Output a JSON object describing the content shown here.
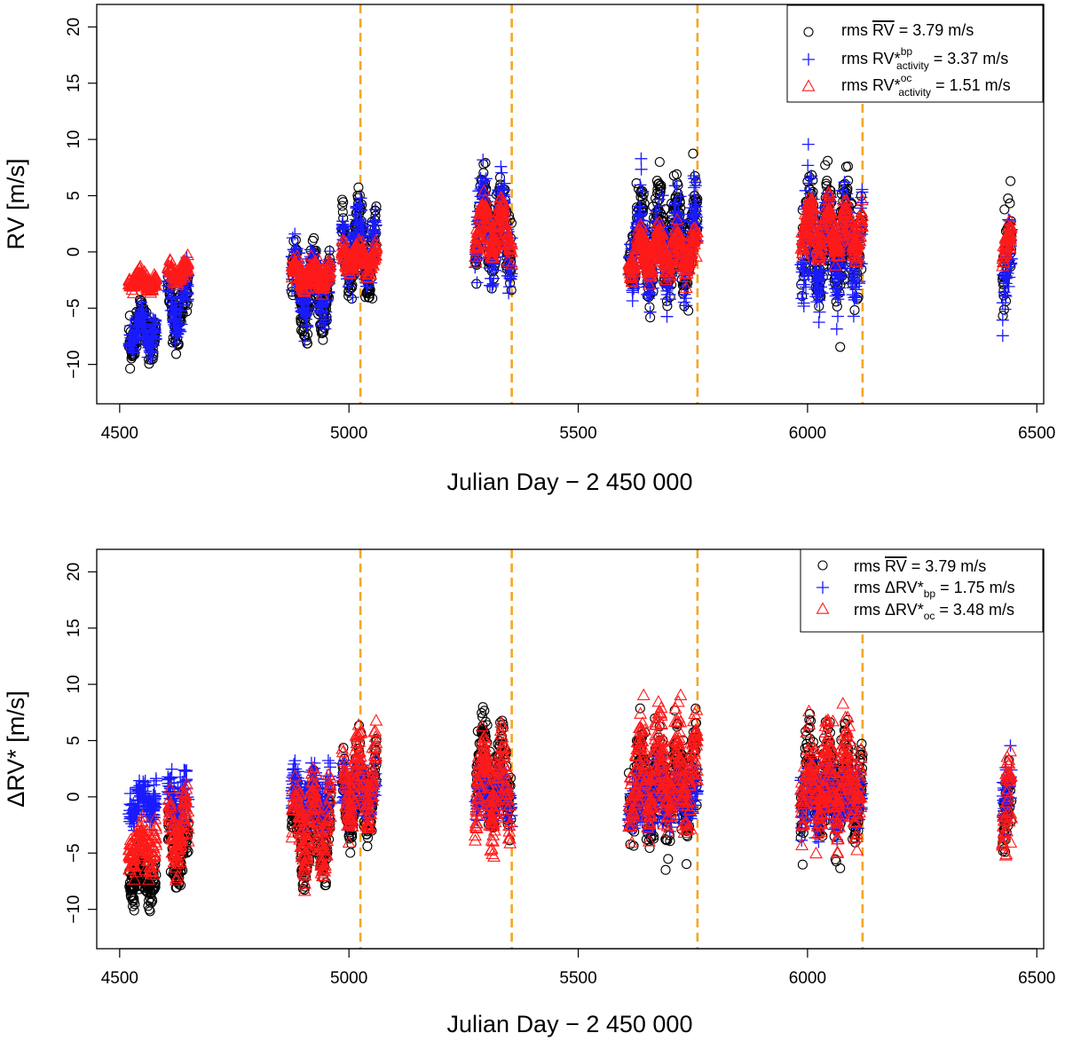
{
  "chart_data": [
    {
      "type": "scatter",
      "panel": "top",
      "xlabel": "Julian Day − 2 450 000",
      "ylabel": "RV [m/s]",
      "xlim": [
        4450,
        6515
      ],
      "ylim": [
        -13.5,
        22
      ],
      "xticks": [
        "4500",
        "5000",
        "5500",
        "6000",
        "6500"
      ],
      "yticks": [
        "−10",
        "−5",
        "0",
        "5",
        "10",
        "15",
        "20"
      ],
      "grid": false,
      "legend_position": "top-right",
      "vlines": [
        5025,
        5355,
        5760,
        6120
      ],
      "vline_color": "#f5a623",
      "legend": [
        {
          "prefix": "rms ",
          "main": "RV",
          "overline": true,
          "sup": "",
          "sub": "",
          "suffix": " = 3.79 m/s",
          "marker": "circle",
          "color": "#000000"
        },
        {
          "prefix": "rms ",
          "main": "RV*",
          "overline": false,
          "sup": "bp",
          "sub": "activity",
          "suffix": " = 3.37 m/s",
          "marker": "plus",
          "color": "#1a1aff"
        },
        {
          "prefix": "rms ",
          "main": "RV*",
          "overline": false,
          "sup": "oc",
          "sub": "activity",
          "suffix": " = 1.51 m/s",
          "marker": "triangle",
          "color": "#ff1a1a"
        }
      ],
      "series": [
        {
          "name": "rms RV = 3.79 m/s",
          "marker": "circle",
          "color": "#000000",
          "groups": [
            {
              "x": [
                4520,
                4580
              ],
              "center": -7,
              "amp": 1.5,
              "noise": 1.4
            },
            {
              "x": [
                4605,
                4650
              ],
              "center": -5,
              "amp": 2,
              "noise": 1.8
            },
            {
              "x": [
                4875,
                4960
              ],
              "center": -3.5,
              "amp": 3,
              "noise": 2
            },
            {
              "x": [
                4985,
                5060
              ],
              "center": 0,
              "amp": 3,
              "noise": 2
            },
            {
              "x": [
                5275,
                5355
              ],
              "center": 2,
              "amp": 3,
              "noise": 2.5
            },
            {
              "x": [
                5610,
                5760
              ],
              "center": 1,
              "amp": 3,
              "noise": 3
            },
            {
              "x": [
                5985,
                6120
              ],
              "center": 1,
              "amp": 3,
              "noise": 3
            },
            {
              "x": [
                6425,
                6445
              ],
              "center": -2,
              "amp": 3,
              "noise": 3
            }
          ]
        },
        {
          "name": "rms RV*bp activity = 3.37 m/s",
          "marker": "plus",
          "color": "#1a1aff",
          "groups": [
            {
              "x": [
                4520,
                4580
              ],
              "center": -7,
              "amp": 1.2,
              "noise": 1.2
            },
            {
              "x": [
                4605,
                4650
              ],
              "center": -4.5,
              "amp": 2,
              "noise": 1.6
            },
            {
              "x": [
                4875,
                4960
              ],
              "center": -3,
              "amp": 2.5,
              "noise": 1.8
            },
            {
              "x": [
                4985,
                5060
              ],
              "center": 0.5,
              "amp": 2.5,
              "noise": 1.8
            },
            {
              "x": [
                5275,
                5355
              ],
              "center": 2,
              "amp": 3,
              "noise": 2.2
            },
            {
              "x": [
                5610,
                5760
              ],
              "center": 0.5,
              "amp": 2.5,
              "noise": 2.5
            },
            {
              "x": [
                5985,
                6120
              ],
              "center": 0.5,
              "amp": 3,
              "noise": 3
            },
            {
              "x": [
                6425,
                6445
              ],
              "center": -3,
              "amp": 3,
              "noise": 3
            }
          ]
        },
        {
          "name": "rms RV*oc activity = 1.51 m/s",
          "marker": "triangle",
          "color": "#ff1a1a",
          "groups": [
            {
              "x": [
                4520,
                4580
              ],
              "center": -2.5,
              "amp": 0.5,
              "noise": 0.5
            },
            {
              "x": [
                4605,
                4650
              ],
              "center": -1.8,
              "amp": 0.6,
              "noise": 0.6
            },
            {
              "x": [
                4875,
                4960
              ],
              "center": -2,
              "amp": 0.8,
              "noise": 0.8
            },
            {
              "x": [
                4985,
                5060
              ],
              "center": -0.5,
              "amp": 0.8,
              "noise": 0.8
            },
            {
              "x": [
                5275,
                5355
              ],
              "center": 2,
              "amp": 2,
              "noise": 1
            },
            {
              "x": [
                5610,
                5760
              ],
              "center": 0,
              "amp": 1.5,
              "noise": 1
            },
            {
              "x": [
                5985,
                6120
              ],
              "center": 2,
              "amp": 2,
              "noise": 1
            },
            {
              "x": [
                6425,
                6445
              ],
              "center": 0,
              "amp": 1.5,
              "noise": 1
            }
          ]
        }
      ]
    },
    {
      "type": "scatter",
      "panel": "bottom",
      "xlabel": "Julian Day − 2 450 000",
      "ylabel": "ΔRV* [m/s]",
      "xlim": [
        4450,
        6515
      ],
      "ylim": [
        -13.5,
        22
      ],
      "xticks": [
        "4500",
        "5000",
        "5500",
        "6000",
        "6500"
      ],
      "yticks": [
        "−10",
        "−5",
        "0",
        "5",
        "10",
        "15",
        "20"
      ],
      "grid": false,
      "legend_position": "top-right",
      "vlines": [
        5025,
        5355,
        5760,
        6120
      ],
      "vline_color": "#f5a623",
      "legend": [
        {
          "prefix": "rms ",
          "main": "RV",
          "overline": true,
          "sup": "",
          "sub": "",
          "suffix": " = 3.79 m/s",
          "marker": "circle",
          "color": "#000000"
        },
        {
          "prefix": "rms ",
          "main": "ΔRV*",
          "overline": false,
          "sup": "",
          "sub": "bp",
          "suffix": " = 1.75 m/s",
          "marker": "plus",
          "color": "#1a1aff"
        },
        {
          "prefix": "rms ",
          "main": "ΔRV*",
          "overline": false,
          "sup": "",
          "sub": "oc",
          "suffix": " = 3.48 m/s",
          "marker": "triangle",
          "color": "#ff1a1a"
        }
      ],
      "series": [
        {
          "name": "rms RV = 3.79 m/s",
          "marker": "circle",
          "color": "#000000",
          "groups": [
            {
              "x": [
                4520,
                4580
              ],
              "center": -7,
              "amp": 1.5,
              "noise": 1.4
            },
            {
              "x": [
                4605,
                4650
              ],
              "center": -5,
              "amp": 2,
              "noise": 1.8
            },
            {
              "x": [
                4875,
                4960
              ],
              "center": -3.5,
              "amp": 3,
              "noise": 2
            },
            {
              "x": [
                4985,
                5060
              ],
              "center": 0,
              "amp": 3,
              "noise": 2
            },
            {
              "x": [
                5275,
                5355
              ],
              "center": 2,
              "amp": 3,
              "noise": 2.5
            },
            {
              "x": [
                5610,
                5760
              ],
              "center": 1,
              "amp": 3,
              "noise": 3
            },
            {
              "x": [
                5985,
                6120
              ],
              "center": 1,
              "amp": 3,
              "noise": 3
            },
            {
              "x": [
                6425,
                6445
              ],
              "center": -2,
              "amp": 3,
              "noise": 3
            }
          ]
        },
        {
          "name": "rms ΔRV*bp = 1.75 m/s",
          "marker": "plus",
          "color": "#1a1aff",
          "groups": [
            {
              "x": [
                4520,
                4580
              ],
              "center": -0.5,
              "amp": 1,
              "noise": 1.6
            },
            {
              "x": [
                4605,
                4650
              ],
              "center": -0.5,
              "amp": 1,
              "noise": 1.8
            },
            {
              "x": [
                4875,
                4960
              ],
              "center": 0,
              "amp": 1.2,
              "noise": 1.8
            },
            {
              "x": [
                4985,
                5060
              ],
              "center": 0.5,
              "amp": 1,
              "noise": 1.6
            },
            {
              "x": [
                5275,
                5355
              ],
              "center": 0,
              "amp": 1,
              "noise": 1.8
            },
            {
              "x": [
                5610,
                5760
              ],
              "center": 0,
              "amp": 1,
              "noise": 2
            },
            {
              "x": [
                5985,
                6120
              ],
              "center": 0,
              "amp": 1,
              "noise": 2
            },
            {
              "x": [
                6425,
                6445
              ],
              "center": 0,
              "amp": 1,
              "noise": 2
            }
          ]
        },
        {
          "name": "rms ΔRV*oc = 3.48 m/s",
          "marker": "triangle",
          "color": "#ff1a1a",
          "groups": [
            {
              "x": [
                4520,
                4580
              ],
              "center": -4.5,
              "amp": 1.2,
              "noise": 1.4
            },
            {
              "x": [
                4605,
                4650
              ],
              "center": -3,
              "amp": 2,
              "noise": 1.8
            },
            {
              "x": [
                4875,
                4960
              ],
              "center": -2.5,
              "amp": 3,
              "noise": 2
            },
            {
              "x": [
                4985,
                5060
              ],
              "center": 1.5,
              "amp": 3,
              "noise": 2
            },
            {
              "x": [
                5275,
                5355
              ],
              "center": 1,
              "amp": 3,
              "noise": 2.5
            },
            {
              "x": [
                5610,
                5760
              ],
              "center": 2,
              "amp": 3,
              "noise": 3
            },
            {
              "x": [
                5985,
                6120
              ],
              "center": 1,
              "amp": 3,
              "noise": 3
            },
            {
              "x": [
                6425,
                6445
              ],
              "center": -2,
              "amp": 3,
              "noise": 3
            }
          ]
        }
      ]
    }
  ]
}
